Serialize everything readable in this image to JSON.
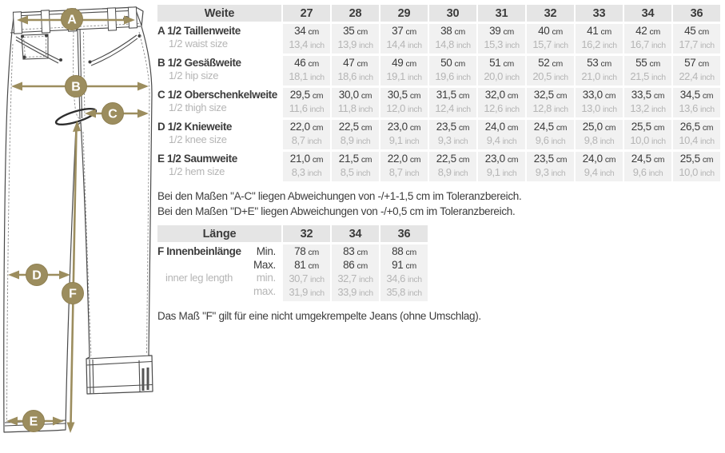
{
  "colors": {
    "accent_khaki": "#9c8d5e",
    "outline": "#4a4a4a",
    "header_bg": "#e5e5e5",
    "cell_bg": "#f1f1f1",
    "text_dark": "#3c3c3c",
    "text_gray": "#b5b5b5"
  },
  "diagram": {
    "markers": [
      "A",
      "B",
      "C",
      "D",
      "E",
      "F"
    ]
  },
  "size_table": {
    "header_label": "Weite",
    "sizes": [
      "27",
      "28",
      "29",
      "30",
      "31",
      "32",
      "33",
      "34",
      "36"
    ],
    "unit_cm": "cm",
    "unit_inch": "inch",
    "rows": [
      {
        "letter": "A",
        "de": "1/2 Taillenweite",
        "en": "1/2 waist size",
        "cm": [
          "34",
          "35",
          "37",
          "38",
          "39",
          "40",
          "41",
          "42",
          "45"
        ],
        "inch": [
          "13,4",
          "13,9",
          "14,4",
          "14,8",
          "15,3",
          "15,7",
          "16,2",
          "16,7",
          "17,7"
        ]
      },
      {
        "letter": "B",
        "de": "1/2 Gesäßweite",
        "en": "1/2 hip size",
        "cm": [
          "46",
          "47",
          "49",
          "50",
          "51",
          "52",
          "53",
          "55",
          "57"
        ],
        "inch": [
          "18,1",
          "18,6",
          "19,1",
          "19,6",
          "20,0",
          "20,5",
          "21,0",
          "21,5",
          "22,4"
        ]
      },
      {
        "letter": "C",
        "de": "1/2 Oberschenkelweite",
        "en": "1/2 thigh size",
        "cm": [
          "29,5",
          "30,0",
          "30,5",
          "31,5",
          "32,0",
          "32,5",
          "33,0",
          "33,5",
          "34,5"
        ],
        "inch": [
          "11,6",
          "11,8",
          "12,0",
          "12,4",
          "12,6",
          "12,8",
          "13,0",
          "13,2",
          "13,6"
        ]
      },
      {
        "letter": "D",
        "de": "1/2 Knieweite",
        "en": "1/2 knee size",
        "cm": [
          "22,0",
          "22,5",
          "23,0",
          "23,5",
          "24,0",
          "24,5",
          "25,0",
          "25,5",
          "26,5"
        ],
        "inch": [
          "8,7",
          "8,9",
          "9,1",
          "9,3",
          "9,4",
          "9,6",
          "9,8",
          "10,0",
          "10,4"
        ]
      },
      {
        "letter": "E",
        "de": "1/2 Saumweite",
        "en": "1/2 hem size",
        "cm": [
          "21,0",
          "21,5",
          "22,0",
          "22,5",
          "23,0",
          "23,5",
          "24,0",
          "24,5",
          "25,5"
        ],
        "inch": [
          "8,3",
          "8,5",
          "8,7",
          "8,9",
          "9,1",
          "9,3",
          "9,4",
          "9,6",
          "10,0"
        ]
      }
    ]
  },
  "notes": {
    "tolerance_ac": "Bei den Maßen \"A-C\" liegen Abweichungen von -/+1-1,5 cm im Toleranzbereich.",
    "tolerance_de": "Bei den Maßen \"D+E\" liegen Abweichungen von -/+0,5 cm im Toleranzbereich.",
    "note_f": "Das Maß \"F\" gilt für eine nicht umgekrempelte Jeans (ohne Umschlag)."
  },
  "length_table": {
    "header_label": "Länge",
    "sizes": [
      "32",
      "34",
      "36"
    ],
    "unit_cm": "cm",
    "unit_inch": "inch",
    "row": {
      "letter": "F",
      "de": "Innenbeinlänge",
      "en": "inner leg length",
      "min_label": "Min.",
      "max_label": "Max.",
      "min_label_en": "min.",
      "max_label_en": "max.",
      "min_cm": [
        "78",
        "83",
        "88"
      ],
      "max_cm": [
        "81",
        "86",
        "91"
      ],
      "min_inch": [
        "30,7",
        "32,7",
        "34,6"
      ],
      "max_inch": [
        "31,9",
        "33,9",
        "35,8"
      ]
    }
  }
}
